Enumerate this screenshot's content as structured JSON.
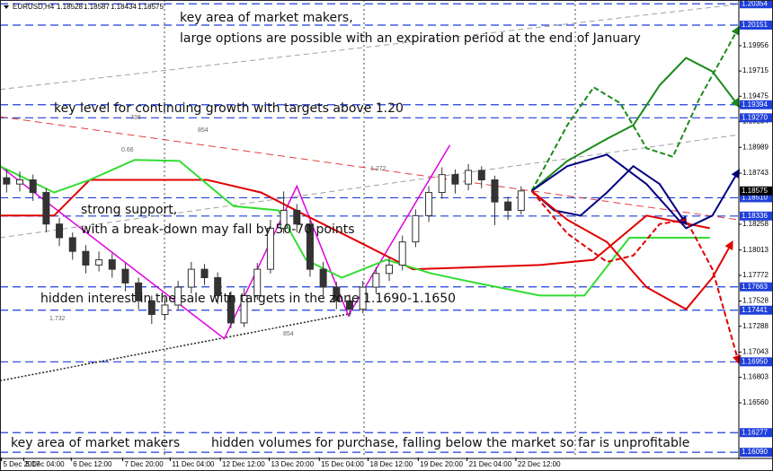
{
  "chart_data": {
    "type": "candlestick",
    "symbol": "EURUSD,H4",
    "ohlc": [
      1.18528,
      1.18587,
      1.18434,
      1.18575
    ],
    "annotations": [
      "key area of market makers,",
      "large options are possible with an expiration period at the end of January",
      "key level for continuing growth with targets above 1.20",
      "strong support,",
      "with a break-down may fall by 50-70 points",
      "hidden interest in the sale with targets in the zone 1.1690-1.1650",
      "key area of market makers",
      "hidden volumes for purchase, falling below the market so far is unprofitable"
    ],
    "small_labels": [
      "0.66",
      "1.272",
      "854",
      "738",
      "1.732",
      "854"
    ],
    "xlim": [
      0,
      56
    ],
    "ylim": [
      1.1604,
      1.2039
    ],
    "xticks": [
      {
        "value": 0.1,
        "label": "5 Dec 2017"
      },
      {
        "value": 1.8,
        "label": "5 Dec 04:00"
      },
      {
        "value": 5.4,
        "label": "6 Dec 12:00"
      },
      {
        "value": 9.3,
        "label": "7 Dec 20:00"
      },
      {
        "value": 12.9,
        "label": "11 Dec 04:00"
      },
      {
        "value": 16.7,
        "label": "12 Dec 12:00"
      },
      {
        "value": 20.4,
        "label": "13 Dec 20:00"
      },
      {
        "value": 24.2,
        "label": "15 Dec 04:00"
      },
      {
        "value": 27.9,
        "label": "18 Dec 12:00"
      },
      {
        "value": 31.7,
        "label": "19 Dec 20:00"
      },
      {
        "value": 35.4,
        "label": "21 Dec 04:00"
      },
      {
        "value": 39.1,
        "label": "22 Dec 12:00"
      }
    ],
    "yticks": [
      1.19956,
      1.19715,
      1.19475,
      1.19234,
      1.18989,
      1.18743,
      1.18258,
      1.18013,
      1.17772,
      1.17528,
      1.17288,
      1.17043,
      1.16803,
      {
        "value": 1.1656,
        "label": "1.16560"
      }
    ],
    "levels": [
      1.20354,
      1.20151,
      1.19394,
      {
        "value": 1.1927,
        "label": "1.19270"
      },
      {
        "value": 1.1851,
        "label": "1.18510"
      },
      1.18336,
      1.17663,
      1.17441,
      {
        "value": 1.1695,
        "label": "1.16950"
      },
      1.16277,
      {
        "value": 1.1609,
        "label": "1.16090"
      }
    ],
    "level_color": "#1f3fd8",
    "current_price": 1.18575,
    "candle_color": "#333333",
    "candles": [
      [
        1.187,
        1.1878,
        1.1856,
        1.1864
      ],
      [
        1.1864,
        1.1876,
        1.1857,
        1.1868
      ],
      [
        1.1868,
        1.1873,
        1.1848,
        1.1856
      ],
      [
        1.1856,
        1.186,
        1.1818,
        1.1826
      ],
      [
        1.1826,
        1.1832,
        1.1805,
        1.1813
      ],
      [
        1.1813,
        1.1818,
        1.1792,
        1.18
      ],
      [
        1.18,
        1.1806,
        1.1779,
        1.1787
      ],
      [
        1.1787,
        1.18,
        1.1781,
        1.1792
      ],
      [
        1.1792,
        1.1798,
        1.1775,
        1.1783
      ],
      [
        1.1783,
        1.1789,
        1.1762,
        1.177
      ],
      [
        1.177,
        1.1775,
        1.1745,
        1.1753
      ],
      [
        1.1753,
        1.1758,
        1.1731,
        1.174
      ],
      [
        1.174,
        1.1756,
        1.1735,
        1.1749
      ],
      [
        1.1749,
        1.1772,
        1.1744,
        1.1766
      ],
      [
        1.1766,
        1.179,
        1.176,
        1.1783
      ],
      [
        1.1783,
        1.1788,
        1.1768,
        1.1775
      ],
      [
        1.1775,
        1.178,
        1.175,
        1.1758
      ],
      [
        1.1758,
        1.1762,
        1.1727,
        1.1732
      ],
      [
        1.1732,
        1.1765,
        1.1728,
        1.1758
      ],
      [
        1.1758,
        1.1789,
        1.1754,
        1.1783
      ],
      [
        1.1783,
        1.183,
        1.1779,
        1.1822
      ],
      [
        1.1822,
        1.1857,
        1.1817,
        1.1839
      ],
      [
        1.1839,
        1.1845,
        1.1818,
        1.1826
      ],
      [
        1.1826,
        1.183,
        1.1776,
        1.1783
      ],
      [
        1.1783,
        1.179,
        1.1758,
        1.1766
      ],
      [
        1.1766,
        1.1771,
        1.1745,
        1.1753
      ],
      [
        1.1753,
        1.1759,
        1.1738,
        1.1745
      ],
      [
        1.1745,
        1.1772,
        1.1741,
        1.1766
      ],
      [
        1.1766,
        1.1785,
        1.176,
        1.1779
      ],
      [
        1.1779,
        1.1794,
        1.1772,
        1.1787
      ],
      [
        1.1787,
        1.1815,
        1.1782,
        1.1809
      ],
      [
        1.1809,
        1.184,
        1.1804,
        1.1834
      ],
      [
        1.1834,
        1.1862,
        1.1828,
        1.1856
      ],
      [
        1.1856,
        1.188,
        1.185,
        1.1873
      ],
      [
        1.1873,
        1.1878,
        1.1855,
        1.1864
      ],
      [
        1.1864,
        1.1883,
        1.1858,
        1.1877
      ],
      [
        1.1877,
        1.1881,
        1.186,
        1.1868
      ],
      [
        1.1868,
        1.1872,
        1.1825,
        1.1847
      ],
      [
        1.1847,
        1.1852,
        1.183,
        1.1839
      ],
      [
        1.1839,
        1.1862,
        1.1835,
        1.18575
      ]
    ],
    "overlays": [
      {
        "color": "#a0a0a0",
        "dash": "6 4",
        "width": 1,
        "x": [
          0,
          56
        ],
        "values": [
          1.1954,
          1.2035
        ]
      },
      {
        "color": "#a0a0a0",
        "dash": "6 4",
        "width": 1,
        "x": [
          0,
          56
        ],
        "values": [
          1.1813,
          1.1911
        ]
      },
      {
        "color": "#e04040",
        "dash": "8 5",
        "width": 1,
        "x": [
          0,
          56
        ],
        "values": [
          1.1928,
          1.183
        ]
      },
      {
        "color": "#222222",
        "dash": "2 2",
        "width": 1.5,
        "x": [
          0,
          26.6
        ],
        "values": [
          1.1677,
          1.1741
        ]
      },
      {
        "color": "#e000e0",
        "dash": "",
        "width": 1.5,
        "x": [
          0,
          17,
          22.5,
          26.4,
          34.1
        ],
        "values": [
          1.1881,
          1.1717,
          1.1862,
          1.1739,
          1.1901
        ]
      },
      {
        "color": "#e00000",
        "dash": "",
        "width": 2,
        "x": [
          0,
          4.1,
          6.8,
          15.7,
          19.8,
          23.2,
          27.2,
          31.3,
          40.9,
          45,
          49,
          53.8
        ],
        "values": [
          1.1834,
          1.1834,
          1.1868,
          1.1868,
          1.1856,
          1.1834,
          1.1809,
          1.1783,
          1.1787,
          1.1792,
          1.1834,
          1.1822
        ]
      },
      {
        "color": "#33dd33",
        "dash": "",
        "width": 2,
        "x": [
          0,
          4.1,
          6.8,
          10.2,
          13.6,
          17.7,
          21.1,
          23.2,
          25.9,
          29.3,
          32.7,
          36.1,
          40.9,
          44.3,
          47.7,
          53.8
        ],
        "values": [
          1.1881,
          1.1856,
          1.1868,
          1.1887,
          1.1886,
          1.1843,
          1.1839,
          1.1792,
          1.1775,
          1.1792,
          1.1779,
          1.177,
          1.1758,
          1.1758,
          1.1813,
          1.1813
        ]
      }
    ],
    "forecasts": [
      {
        "color": "#1a8a1a",
        "dash": "6 3",
        "x": [
          40.3,
          43,
          45,
          47,
          49,
          51,
          53,
          56
        ],
        "values": [
          1.18575,
          1.192,
          1.1956,
          1.1941,
          1.1898,
          1.189,
          1.1945,
          1.2013
        ]
      },
      {
        "color": "#1a8a1a",
        "dash": "",
        "x": [
          40.3,
          43,
          46,
          48,
          50,
          52,
          54,
          56
        ],
        "values": [
          1.18575,
          1.1886,
          1.1907,
          1.192,
          1.1958,
          1.1984,
          1.1971,
          1.1938
        ]
      },
      {
        "color": "#000080",
        "dash": "",
        "x": [
          40.3,
          43,
          46,
          49,
          52,
          54,
          56
        ],
        "values": [
          1.18575,
          1.1881,
          1.1892,
          1.1864,
          1.1822,
          1.1834,
          1.1877
        ]
      },
      {
        "color": "#000080",
        "dash": "",
        "x": [
          40.3,
          42,
          44,
          46,
          48,
          50,
          52
        ],
        "values": [
          1.18575,
          1.1839,
          1.1834,
          1.1856,
          1.1881,
          1.1864,
          1.1826
        ]
      },
      {
        "color": "#e00000",
        "dash": "",
        "x": [
          40.3,
          43,
          46,
          49,
          52,
          54,
          55.5
        ],
        "values": [
          1.18575,
          1.183,
          1.1809,
          1.1766,
          1.1745,
          1.1775,
          1.1809
        ]
      },
      {
        "color": "#e00000",
        "dash": "6 3",
        "x": [
          40.3,
          43,
          46,
          48,
          50,
          52,
          54,
          56
        ],
        "values": [
          1.18575,
          1.1817,
          1.179,
          1.1796,
          1.1826,
          1.183,
          1.1783,
          1.1694
        ]
      }
    ]
  }
}
